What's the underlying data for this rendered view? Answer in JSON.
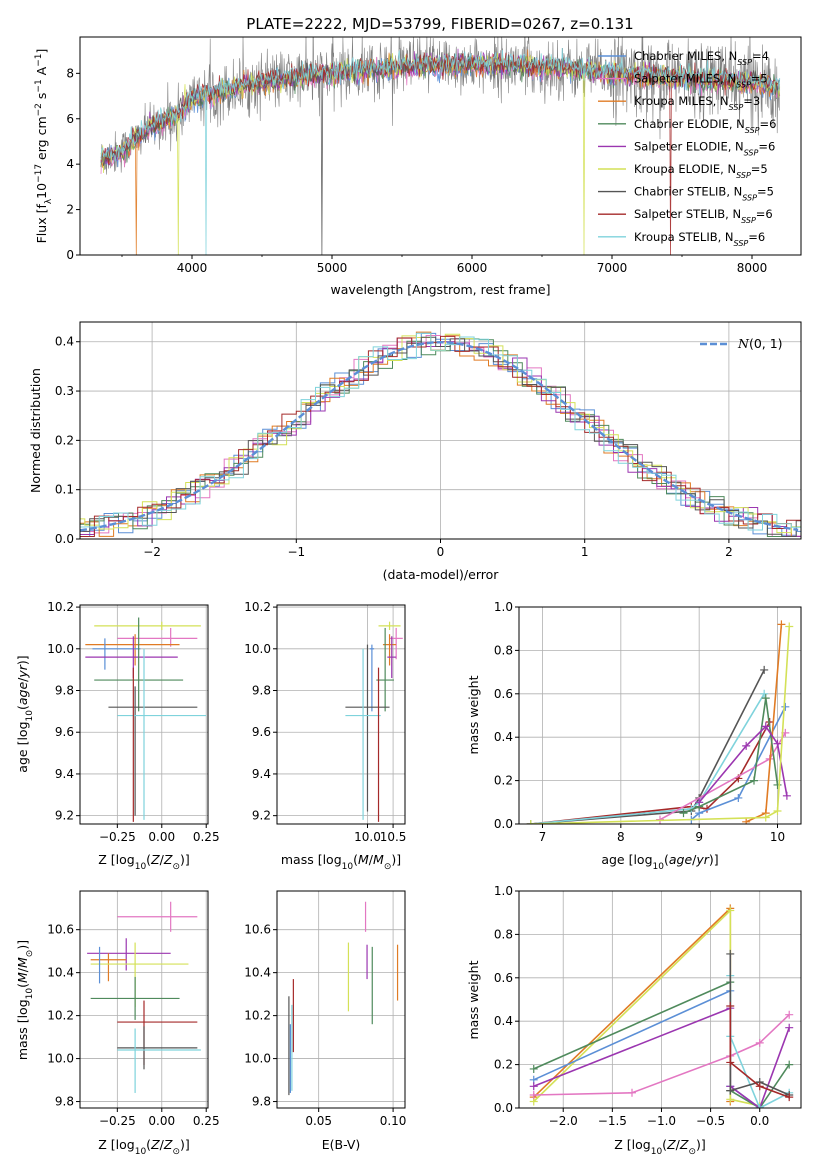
{
  "title": "PLATE=2222, MJD=53799, FIBERID=0267, z=0.131",
  "colors": {
    "chabrier_miles": "#5b8fd6",
    "salpeter_miles": "#e377c2",
    "kroupa_miles": "#e07b24",
    "chabrier_elodie": "#4f8a5c",
    "salpeter_elodie": "#9b36b0",
    "kroupa_elodie": "#d4e157",
    "chabrier_stelib": "#555555",
    "salpeter_stelib": "#a52a2a",
    "kroupa_stelib": "#7fd3dc",
    "data": "#808080",
    "normal": "#5b8fd6"
  },
  "chart_data": [
    {
      "type": "line",
      "id": "spectrum",
      "xlabel": "wavelength [Angstrom, rest frame]",
      "ylabel": "Flux [fλ10⁻¹⁷ erg cm⁻² s⁻¹ A⁻¹]",
      "xlim": [
        3200,
        8350
      ],
      "ylim": [
        0,
        9.6
      ],
      "xticks": [
        4000,
        5000,
        6000,
        7000,
        8000
      ],
      "yticks": [
        0,
        2,
        4,
        6,
        8
      ],
      "grid": false,
      "legend": "upper right",
      "legend_entries": [
        {
          "label": "Chabrier MILES, N",
          "sub": "SSP",
          "tail": "=4",
          "color": "chabrier_miles"
        },
        {
          "label": "Salpeter MILES, N",
          "sub": "SSP",
          "tail": "=5",
          "color": "salpeter_miles"
        },
        {
          "label": "Kroupa MILES, N",
          "sub": "SSP",
          "tail": "=3",
          "color": "kroupa_miles"
        },
        {
          "label": "Chabrier ELODIE, N",
          "sub": "SSP",
          "tail": "=6",
          "color": "chabrier_elodie"
        },
        {
          "label": "Salpeter ELODIE, N",
          "sub": "SSP",
          "tail": "=6",
          "color": "salpeter_elodie"
        },
        {
          "label": "Kroupa ELODIE, N",
          "sub": "SSP",
          "tail": "=5",
          "color": "kroupa_elodie"
        },
        {
          "label": "Chabrier STELIB, N",
          "sub": "SSP",
          "tail": "=5",
          "color": "chabrier_stelib"
        },
        {
          "label": "Salpeter STELIB, N",
          "sub": "SSP",
          "tail": "=6",
          "color": "salpeter_stelib"
        },
        {
          "label": "Kroupa STELIB, N",
          "sub": "SSP",
          "tail": "=6",
          "color": "kroupa_stelib"
        }
      ],
      "continuum": [
        [
          3350,
          4.2
        ],
        [
          3500,
          4.6
        ],
        [
          3700,
          5.6
        ],
        [
          3900,
          6.2
        ],
        [
          4000,
          6.9
        ],
        [
          4200,
          7.2
        ],
        [
          4500,
          7.6
        ],
        [
          5000,
          8.0
        ],
        [
          5500,
          8.3
        ],
        [
          6000,
          8.4
        ],
        [
          6500,
          8.3
        ],
        [
          7000,
          8.0
        ],
        [
          7500,
          7.8
        ],
        [
          8000,
          7.6
        ],
        [
          8200,
          7.4
        ]
      ],
      "dropouts": [
        3600,
        3900,
        4100,
        4930,
        6800,
        7420
      ]
    },
    {
      "type": "histogram",
      "id": "residuals",
      "xlabel": "(data-model)/error",
      "ylabel": "Normed distribution",
      "xlim": [
        -2.5,
        2.5
      ],
      "ylim": [
        0,
        0.44
      ],
      "xticks": [
        -2,
        -1,
        0,
        1,
        2
      ],
      "yticks": [
        0.0,
        0.1,
        0.2,
        0.3,
        0.4
      ],
      "grid": true,
      "legend": "upper right",
      "normal_label": "(0, 1)",
      "normal_symbol": "N",
      "bin_width": 0.1
    },
    {
      "type": "errorbar",
      "id": "age_vs_Z",
      "xlabel": "Z [log10(Z/Z⊙)]",
      "ylabel": "age  [log10(age/yr)]",
      "xlim": [
        -0.46,
        0.26
      ],
      "ylim": [
        9.16,
        10.21
      ],
      "xticks": [
        -0.25,
        0.0,
        0.25
      ],
      "yticks": [
        9.2,
        9.4,
        9.6,
        9.8,
        10.0,
        10.2
      ],
      "grid": true,
      "points": [
        {
          "model": "kroupa_elodie",
          "x": 0.0,
          "xerr": [
            0.38,
            0.22
          ],
          "y": 10.11,
          "yerr": [
            0.02,
            0.02
          ]
        },
        {
          "model": "salpeter_miles",
          "x": 0.05,
          "xerr": [
            0.3,
            0.15
          ],
          "y": 10.05,
          "yerr": [
            0.04,
            0.05
          ]
        },
        {
          "model": "kroupa_miles",
          "x": -0.15,
          "xerr": [
            0.28,
            0.25
          ],
          "y": 10.02,
          "yerr": [
            0.1,
            0.05
          ]
        },
        {
          "model": "chabrier_miles",
          "x": -0.32,
          "xerr": [
            0.07,
            0.2
          ],
          "y": 10.0,
          "yerr": [
            0.1,
            0.05
          ]
        },
        {
          "model": "salpeter_elodie",
          "x": -0.16,
          "xerr": [
            0.27,
            0.25
          ],
          "y": 9.96,
          "yerr": [
            0.1,
            0.1
          ]
        },
        {
          "model": "chabrier_elodie",
          "x": -0.13,
          "xerr": [
            0.25,
            0.25
          ],
          "y": 9.85,
          "yerr": [
            0.15,
            0.3
          ]
        },
        {
          "model": "chabrier_stelib",
          "x": -0.15,
          "xerr": [
            0.15,
            0.35
          ],
          "y": 9.72,
          "yerr": [
            0.52,
            0.1
          ]
        },
        {
          "model": "kroupa_stelib",
          "x": -0.1,
          "xerr": [
            0.15,
            0.35
          ],
          "y": 9.68,
          "yerr": [
            0.5,
            0.32
          ]
        },
        {
          "model": "salpeter_stelib",
          "x": -0.16,
          "xerr": [
            0.0,
            0.0
          ],
          "y": 9.65,
          "yerr": [
            0.48,
            0.26
          ]
        }
      ]
    },
    {
      "type": "errorbar",
      "id": "age_vs_mass",
      "xlabel": "mass [log10(M/M⊙)]",
      "ylabel": "",
      "xlim": [
        7.85,
        10.75
      ],
      "ylim": [
        9.16,
        10.21
      ],
      "xticks": [
        8.0,
        9.0,
        10.0
      ],
      "yticks": [
        9.2,
        9.4,
        9.6,
        9.8,
        10.0,
        10.2
      ],
      "xticklabels": [
        "10.0",
        "10.5"
      ],
      "xticklabel_values": [
        9.9,
        10.48
      ],
      "grid": true,
      "points": [
        {
          "model": "kroupa_elodie",
          "x": 10.4,
          "xerr": [
            0.25,
            0.25
          ],
          "y": 10.11,
          "yerr": [
            0.02,
            0.02
          ]
        },
        {
          "model": "salpeter_miles",
          "x": 10.55,
          "xerr": [
            0.15,
            0.15
          ],
          "y": 10.05,
          "yerr": [
            0.1,
            0.05
          ]
        },
        {
          "model": "kroupa_miles",
          "x": 10.4,
          "xerr": [
            0.15,
            0.15
          ],
          "y": 10.02,
          "yerr": [
            0.1,
            0.05
          ]
        },
        {
          "model": "chabrier_miles",
          "x": 10.0,
          "xerr": [
            0.05,
            0.05
          ],
          "y": 10.0,
          "yerr": [
            0.3,
            0.02
          ]
        },
        {
          "model": "salpeter_elodie",
          "x": 10.45,
          "xerr": [
            0.1,
            0.1
          ],
          "y": 9.96,
          "yerr": [
            0.1,
            0.1
          ]
        },
        {
          "model": "chabrier_elodie",
          "x": 10.3,
          "xerr": [
            0.2,
            0.2
          ],
          "y": 9.85,
          "yerr": [
            0.15,
            0.25
          ]
        },
        {
          "model": "chabrier_stelib",
          "x": 9.9,
          "xerr": [
            0.5,
            0.5
          ],
          "y": 9.72,
          "yerr": [
            0.5,
            0.3
          ]
        },
        {
          "model": "kroupa_stelib",
          "x": 9.8,
          "xerr": [
            0.4,
            0.4
          ],
          "y": 9.68,
          "yerr": [
            0.5,
            0.32
          ]
        },
        {
          "model": "salpeter_stelib",
          "x": 10.15,
          "xerr": [
            0.0,
            0.0
          ],
          "y": 9.65,
          "yerr": [
            0.48,
            0.26
          ]
        }
      ]
    },
    {
      "type": "line",
      "id": "weight_vs_age",
      "xlabel": "age  [log10(age/yr)]",
      "ylabel": "mass weight",
      "xlim": [
        6.7,
        10.3
      ],
      "ylim": [
        0,
        1.0
      ],
      "xticks": [
        7,
        8,
        9,
        10
      ],
      "yticks": [
        0.0,
        0.2,
        0.4,
        0.6,
        0.8,
        1.0
      ],
      "grid": true,
      "series": [
        {
          "model": "chabrier_stelib",
          "x": [
            6.85,
            8.9,
            9.0,
            9.83
          ],
          "y": [
            0.0,
            0.06,
            0.12,
            0.71
          ]
        },
        {
          "model": "salpeter_stelib",
          "x": [
            6.85,
            8.9,
            9.1,
            9.5,
            9.9
          ],
          "y": [
            0.0,
            0.08,
            0.07,
            0.21,
            0.47
          ]
        },
        {
          "model": "kroupa_stelib",
          "x": [
            6.85,
            8.9,
            9.0,
            9.83
          ],
          "y": [
            0.0,
            0.07,
            0.1,
            0.6
          ]
        },
        {
          "model": "chabrier_miles",
          "x": [
            8.9,
            9.0,
            9.5,
            10.1
          ],
          "y": [
            0.02,
            0.05,
            0.12,
            0.54
          ]
        },
        {
          "model": "salpeter_miles",
          "x": [
            8.5,
            9.9,
            10.1
          ],
          "y": [
            0.02,
            0.3,
            0.42
          ]
        },
        {
          "model": "kroupa_miles",
          "x": [
            9.6,
            9.85,
            10.05
          ],
          "y": [
            0.01,
            0.05,
            0.92
          ]
        },
        {
          "model": "chabrier_elodie",
          "x": [
            8.8,
            9.0,
            9.7,
            9.85,
            10.0
          ],
          "y": [
            0.05,
            0.08,
            0.2,
            0.58,
            0.18
          ]
        },
        {
          "model": "salpeter_elodie",
          "x": [
            9.0,
            9.6,
            9.85,
            10.0,
            10.12
          ],
          "y": [
            0.1,
            0.36,
            0.45,
            0.37,
            0.13
          ]
        },
        {
          "model": "kroupa_elodie",
          "x": [
            6.85,
            9.85,
            10.0,
            10.15
          ],
          "y": [
            0.0,
            0.03,
            0.06,
            0.91
          ]
        }
      ]
    },
    {
      "type": "errorbar",
      "id": "mass_vs_Z",
      "xlabel": "Z [log10(Z/Z⊙)]",
      "ylabel": "mass [log10(M/M⊙)]",
      "xlim": [
        -0.46,
        0.26
      ],
      "ylim": [
        9.77,
        10.78
      ],
      "xticks": [
        -0.25,
        0.0,
        0.25
      ],
      "yticks": [
        9.8,
        10.0,
        10.2,
        10.4,
        10.6
      ],
      "grid": true,
      "points": [
        {
          "model": "salpeter_miles",
          "x": 0.05,
          "xerr": [
            0.3,
            0.15
          ],
          "y": 10.66,
          "yerr": [
            0.07,
            0.07
          ]
        },
        {
          "model": "salpeter_elodie",
          "x": -0.2,
          "xerr": [
            0.22,
            0.25
          ],
          "y": 10.49,
          "yerr": [
            0.08,
            0.07
          ]
        },
        {
          "model": "kroupa_miles",
          "x": -0.3,
          "xerr": [
            0.1,
            0.1
          ],
          "y": 10.46,
          "yerr": [
            0.1,
            0.03
          ]
        },
        {
          "model": "kroupa_elodie",
          "x": -0.15,
          "xerr": [
            0.25,
            0.3
          ],
          "y": 10.44,
          "yerr": [
            0.2,
            0.1
          ]
        },
        {
          "model": "chabrier_elodie",
          "x": -0.15,
          "xerr": [
            0.25,
            0.25
          ],
          "y": 10.28,
          "yerr": [
            0.1,
            0.1
          ]
        },
        {
          "model": "salpeter_stelib",
          "x": -0.1,
          "xerr": [
            0.15,
            0.3
          ],
          "y": 10.17,
          "yerr": [
            0.2,
            0.1
          ]
        },
        {
          "model": "chabrier_stelib",
          "x": -0.1,
          "xerr": [
            0.15,
            0.3
          ],
          "y": 10.05,
          "yerr": [
            0.1,
            0.1
          ]
        },
        {
          "model": "kroupa_stelib",
          "x": -0.15,
          "xerr": [
            0.1,
            0.37
          ],
          "y": 10.04,
          "yerr": [
            0.2,
            0.1
          ]
        },
        {
          "model": "chabrier_miles",
          "x": -0.35,
          "xerr": [
            0.0,
            0.0
          ],
          "y": 10.45,
          "yerr": [
            0.1,
            0.07
          ]
        }
      ]
    },
    {
      "type": "errorbar",
      "id": "mass_vs_EBV",
      "xlabel": "E(B-V)",
      "ylabel": "",
      "xlim": [
        0.022,
        0.108
      ],
      "ylim": [
        9.77,
        10.78
      ],
      "xticks": [
        0.05,
        0.1
      ],
      "yticks": [
        9.8,
        10.0,
        10.2,
        10.4,
        10.6
      ],
      "grid": true,
      "points": [
        {
          "model": "salpeter_miles",
          "x": 0.0815,
          "xerr": [
            0,
            0
          ],
          "y": 10.66,
          "yerr": [
            0.07,
            0.07
          ]
        },
        {
          "model": "salpeter_elodie",
          "x": 0.0825,
          "xerr": [
            0,
            0
          ],
          "y": 10.45,
          "yerr": [
            0.08,
            0.08
          ]
        },
        {
          "model": "kroupa_miles",
          "x": 0.103,
          "xerr": [
            0,
            0
          ],
          "y": 10.4,
          "yerr": [
            0.13,
            0.13
          ]
        },
        {
          "model": "kroupa_elodie",
          "x": 0.07,
          "xerr": [
            0,
            0
          ],
          "y": 10.38,
          "yerr": [
            0.16,
            0.16
          ]
        },
        {
          "model": "chabrier_elodie",
          "x": 0.086,
          "xerr": [
            0,
            0
          ],
          "y": 10.34,
          "yerr": [
            0.18,
            0.18
          ]
        },
        {
          "model": "salpeter_stelib",
          "x": 0.033,
          "xerr": [
            0,
            0
          ],
          "y": 10.2,
          "yerr": [
            0.17,
            0.17
          ]
        },
        {
          "model": "chabrier_stelib",
          "x": 0.03,
          "xerr": [
            0,
            0
          ],
          "y": 10.06,
          "yerr": [
            0.23,
            0.23
          ]
        },
        {
          "model": "kroupa_stelib",
          "x": 0.032,
          "xerr": [
            0,
            0
          ],
          "y": 10.05,
          "yerr": [
            0.2,
            0.2
          ]
        },
        {
          "model": "chabrier_miles",
          "x": 0.031,
          "xerr": [
            0,
            0
          ],
          "y": 10.0,
          "yerr": [
            0.16,
            0.16
          ]
        }
      ]
    },
    {
      "type": "line",
      "id": "weight_vs_Z",
      "xlabel": "Z [log10(Z/Z⊙)]",
      "ylabel": "mass weight",
      "xlim": [
        -2.45,
        0.42
      ],
      "ylim": [
        0,
        1.0
      ],
      "xticks": [
        -2.0,
        -1.5,
        -1.0,
        -0.5,
        0.0
      ],
      "yticks": [
        0.0,
        0.2,
        0.4,
        0.6,
        0.8,
        1.0
      ],
      "grid": true,
      "series": [
        {
          "model": "kroupa_miles",
          "x": [
            -2.3,
            -0.3,
            -0.3
          ],
          "y": [
            0.05,
            0.92,
            0.03
          ]
        },
        {
          "model": "kroupa_elodie",
          "x": [
            -2.3,
            -0.3,
            -0.3,
            0.0
          ],
          "y": [
            0.03,
            0.91,
            0.04,
            0.01
          ]
        },
        {
          "model": "chabrier_elodie",
          "x": [
            -2.3,
            -0.3,
            -0.3,
            0.0,
            0.3
          ],
          "y": [
            0.18,
            0.58,
            0.08,
            0.0,
            0.2
          ]
        },
        {
          "model": "chabrier_miles",
          "x": [
            -2.3,
            -0.3,
            -0.3,
            0.0
          ],
          "y": [
            0.13,
            0.54,
            0.1,
            0.0
          ]
        },
        {
          "model": "salpeter_elodie",
          "x": [
            -2.3,
            -0.3,
            -0.3,
            0.0,
            0.3
          ],
          "y": [
            0.1,
            0.46,
            0.1,
            0.0,
            0.37
          ]
        },
        {
          "model": "salpeter_miles",
          "x": [
            -2.3,
            -1.3,
            -0.3,
            0.0,
            0.3
          ],
          "y": [
            0.06,
            0.07,
            0.24,
            0.3,
            0.43
          ]
        },
        {
          "model": "kroupa_stelib",
          "x": [
            -0.3,
            -0.3,
            0.0,
            0.3
          ],
          "y": [
            0.61,
            0.33,
            0.0,
            0.07
          ]
        },
        {
          "model": "chabrier_stelib",
          "x": [
            -0.3,
            -0.3,
            0.0,
            0.3
          ],
          "y": [
            0.71,
            0.08,
            0.12,
            0.06
          ]
        },
        {
          "model": "salpeter_stelib",
          "x": [
            -0.3,
            -0.3,
            0.0,
            0.3
          ],
          "y": [
            0.47,
            0.21,
            0.1,
            0.05
          ]
        }
      ]
    }
  ]
}
